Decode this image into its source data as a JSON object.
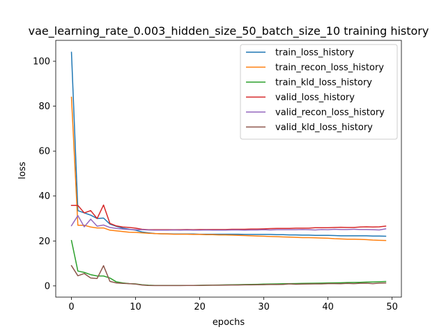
{
  "chart_data": {
    "type": "line",
    "title": "vae_learning_rate_0.003_hidden_size_50_batch_size_10 training history",
    "xlabel": "epochs",
    "ylabel": "loss",
    "xlim": [
      -2.45,
      51.45
    ],
    "ylim": [
      -5.0,
      109.3
    ],
    "xticks": [
      0,
      10,
      20,
      30,
      40,
      50
    ],
    "yticks": [
      0,
      20,
      40,
      60,
      80,
      100
    ],
    "grid": false,
    "legend_position": "top-right",
    "x": [
      0,
      1,
      2,
      3,
      4,
      5,
      6,
      7,
      8,
      9,
      10,
      11,
      12,
      13,
      14,
      15,
      16,
      17,
      18,
      19,
      20,
      21,
      22,
      23,
      24,
      25,
      26,
      27,
      28,
      29,
      30,
      31,
      32,
      33,
      34,
      35,
      36,
      37,
      38,
      39,
      40,
      41,
      42,
      43,
      44,
      45,
      46,
      47,
      48,
      49
    ],
    "series": [
      {
        "name": "train_loss_history",
        "color": "#1f77b4",
        "values": [
          104.0,
          33.5,
          32.5,
          31.5,
          30.0,
          30.2,
          27.5,
          26.5,
          25.7,
          25.2,
          24.8,
          24.0,
          23.6,
          23.3,
          23.2,
          23.2,
          23.1,
          23.1,
          23.1,
          23.1,
          23.0,
          23.0,
          23.0,
          23.0,
          23.0,
          23.0,
          23.0,
          22.9,
          22.9,
          22.9,
          22.9,
          22.9,
          22.8,
          22.8,
          22.7,
          22.7,
          22.6,
          22.6,
          22.5,
          22.5,
          22.5,
          22.4,
          22.3,
          22.3,
          22.3,
          22.3,
          22.3,
          22.2,
          22.2,
          22.1
        ]
      },
      {
        "name": "train_recon_loss_history",
        "color": "#ff7f0e",
        "values": [
          84.0,
          27.0,
          27.0,
          26.2,
          25.8,
          25.8,
          24.8,
          24.5,
          24.2,
          23.9,
          23.8,
          23.6,
          23.4,
          23.3,
          23.2,
          23.1,
          23.0,
          23.0,
          23.0,
          22.9,
          22.9,
          22.8,
          22.8,
          22.7,
          22.7,
          22.6,
          22.5,
          22.4,
          22.3,
          22.2,
          22.1,
          22.0,
          21.9,
          21.8,
          21.7,
          21.6,
          21.5,
          21.5,
          21.4,
          21.3,
          21.2,
          21.0,
          20.9,
          20.8,
          20.8,
          20.7,
          20.6,
          20.4,
          20.3,
          20.2
        ]
      },
      {
        "name": "train_kld_loss_history",
        "color": "#2ca02c",
        "values": [
          20.2,
          6.6,
          6.0,
          5.0,
          4.4,
          4.4,
          3.5,
          1.8,
          1.3,
          1.0,
          0.9,
          0.5,
          0.3,
          0.2,
          0.2,
          0.2,
          0.2,
          0.2,
          0.2,
          0.2,
          0.25,
          0.3,
          0.35,
          0.4,
          0.45,
          0.5,
          0.55,
          0.6,
          0.65,
          0.7,
          0.8,
          0.85,
          0.9,
          0.95,
          1.0,
          1.05,
          1.1,
          1.15,
          1.2,
          1.25,
          1.3,
          1.35,
          1.4,
          1.5,
          1.55,
          1.6,
          1.7,
          1.75,
          1.85,
          1.95
        ]
      },
      {
        "name": "valid_loss_history",
        "color": "#d62728",
        "values": [
          35.8,
          35.8,
          32.5,
          33.5,
          30.0,
          36.0,
          27.8,
          26.7,
          26.2,
          26.0,
          25.7,
          25.2,
          25.0,
          25.0,
          25.0,
          25.0,
          25.0,
          25.0,
          25.1,
          25.0,
          25.1,
          25.1,
          25.1,
          25.1,
          25.1,
          25.2,
          25.2,
          25.2,
          25.3,
          25.3,
          25.4,
          25.5,
          25.6,
          25.6,
          25.6,
          25.7,
          25.7,
          25.7,
          25.9,
          25.9,
          25.9,
          26.0,
          26.1,
          26.0,
          26.0,
          26.2,
          26.3,
          26.2,
          26.3,
          26.6
        ]
      },
      {
        "name": "valid_recon_loss_history",
        "color": "#9467bd",
        "values": [
          26.8,
          31.3,
          26.3,
          29.7,
          26.6,
          27.1,
          26.0,
          25.6,
          25.3,
          25.1,
          25.0,
          25.0,
          24.9,
          24.8,
          24.8,
          24.8,
          24.9,
          24.8,
          24.9,
          24.8,
          24.8,
          24.9,
          24.8,
          24.8,
          24.8,
          24.9,
          24.9,
          24.8,
          24.9,
          24.9,
          25.0,
          24.9,
          25.0,
          25.0,
          25.0,
          25.0,
          25.1,
          25.0,
          24.9,
          25.1,
          25.0,
          25.2,
          25.1,
          25.1,
          25.2,
          25.1,
          25.1,
          25.0,
          24.9,
          25.4
        ]
      },
      {
        "name": "valid_kld_loss_history",
        "color": "#8c564b",
        "values": [
          9.0,
          4.5,
          5.5,
          3.5,
          3.3,
          9.0,
          2.0,
          1.3,
          1.1,
          1.0,
          0.8,
          0.4,
          0.2,
          0.15,
          0.15,
          0.15,
          0.15,
          0.15,
          0.2,
          0.2,
          0.2,
          0.25,
          0.3,
          0.3,
          0.35,
          0.4,
          0.4,
          0.45,
          0.45,
          0.5,
          0.55,
          0.6,
          0.6,
          0.65,
          0.9,
          0.75,
          0.8,
          0.85,
          0.9,
          0.9,
          1.0,
          1.0,
          0.95,
          1.1,
          1.0,
          1.15,
          1.2,
          1.0,
          1.25,
          1.3
        ]
      }
    ]
  }
}
